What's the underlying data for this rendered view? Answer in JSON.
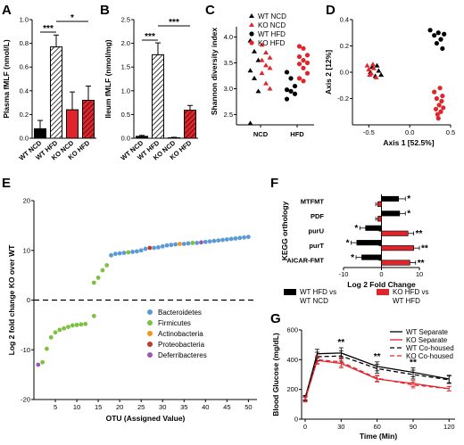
{
  "colors": {
    "black": "#000000",
    "red": "#e0242b",
    "blue": "#5b9bd5",
    "green": "#7dc142",
    "orange": "#f7941d",
    "purple": "#9b59b6",
    "darkred": "#c0392b"
  },
  "panels": {
    "A": {
      "label": "A"
    },
    "B": {
      "label": "B"
    },
    "C": {
      "label": "C"
    },
    "D": {
      "label": "D"
    },
    "E": {
      "label": "E"
    },
    "F": {
      "label": "F"
    },
    "G": {
      "label": "G"
    }
  },
  "chart_data": [
    {
      "id": "A",
      "type": "bar",
      "ylabel": "Plasma fMLF (nmol/L)",
      "ylim": [
        0,
        1.0
      ],
      "yticks": [
        "0.0",
        "0.2",
        "0.4",
        "0.6",
        "0.8",
        "1.0"
      ],
      "categories": [
        "WT NCD",
        "WT HFD",
        "KO NCD",
        "KO HFD"
      ],
      "values": [
        0.08,
        0.77,
        0.24,
        0.32
      ],
      "errors": [
        0.07,
        0.1,
        0.15,
        0.12
      ],
      "significance": [
        "***",
        "*"
      ]
    },
    {
      "id": "B",
      "type": "bar",
      "ylabel": "Ileum fMLF (nmol/mg)",
      "ylim": [
        0,
        2.5
      ],
      "yticks": [
        "0.0",
        "0.5",
        "1.0",
        "1.5",
        "2.0",
        "2.5"
      ],
      "categories": [
        "WT NCD",
        "WT HFD",
        "KO NCD",
        "KO HFD"
      ],
      "values": [
        0.04,
        1.76,
        0.01,
        0.59
      ],
      "errors": [
        0.02,
        0.25,
        0.01,
        0.1
      ],
      "significance": [
        "***",
        "***"
      ]
    },
    {
      "id": "C",
      "type": "scatter",
      "ylabel": "Shannon diversity index",
      "ylim": [
        2.3,
        4.2
      ],
      "yticks": [
        "2.5",
        "3.0",
        "3.5",
        "4.0"
      ],
      "categories": [
        "NCD",
        "HFD"
      ],
      "legend": [
        "WT NCD",
        "KO NCD",
        "WT HFD",
        "KO HFD"
      ],
      "series": [
        {
          "name": "WT NCD",
          "group": "NCD",
          "values": [
            3.93,
            3.72,
            3.55,
            3.35,
            3.2,
            2.95,
            2.33
          ]
        },
        {
          "name": "KO NCD",
          "group": "NCD",
          "values": [
            3.85,
            3.7,
            3.6,
            3.55,
            3.45,
            3.4,
            3.3,
            3.1,
            3.0
          ]
        },
        {
          "name": "WT HFD",
          "group": "HFD",
          "values": [
            3.32,
            3.2,
            3.05,
            2.98,
            2.95,
            2.9,
            2.8
          ]
        },
        {
          "name": "KO HFD",
          "group": "HFD",
          "values": [
            3.82,
            3.78,
            3.65,
            3.62,
            3.55,
            3.5,
            3.48,
            3.4,
            3.3,
            3.2,
            3.15
          ]
        }
      ]
    },
    {
      "id": "D",
      "type": "scatter",
      "xlabel": "Axis 1 [52.5%]",
      "ylabel": "Axis 2 [12%]",
      "xlim": [
        -0.7,
        0.5
      ],
      "ylim": [
        -0.4,
        0.4
      ],
      "xticks": [
        "-0.5",
        "0.0",
        "0.5"
      ],
      "yticks": [
        "-0.2",
        "0.0",
        "0.2",
        "0.4"
      ],
      "series": [
        {
          "name": "WT NCD",
          "points": [
            [
              -0.48,
              0.0
            ],
            [
              -0.42,
              -0.03
            ],
            [
              -0.4,
              0.05
            ],
            [
              -0.35,
              -0.02
            ],
            [
              -0.46,
              0.04
            ],
            [
              -0.38,
              0.01
            ]
          ]
        },
        {
          "name": "KO NCD",
          "points": [
            [
              -0.52,
              0.05
            ],
            [
              -0.5,
              0.02
            ],
            [
              -0.47,
              -0.01
            ],
            [
              -0.44,
              0.03
            ],
            [
              -0.41,
              -0.04
            ],
            [
              -0.45,
              0.06
            ],
            [
              -0.49,
              -0.02
            ]
          ]
        },
        {
          "name": "WT HFD",
          "points": [
            [
              0.25,
              0.32
            ],
            [
              0.3,
              0.28
            ],
            [
              0.35,
              0.3
            ],
            [
              0.38,
              0.25
            ],
            [
              0.4,
              0.18
            ],
            [
              0.33,
              0.22
            ],
            [
              0.42,
              0.29
            ]
          ]
        },
        {
          "name": "KO HFD",
          "points": [
            [
              0.3,
              -0.15
            ],
            [
              0.33,
              -0.2
            ],
            [
              0.36,
              -0.25
            ],
            [
              0.38,
              -0.3
            ],
            [
              0.4,
              -0.18
            ],
            [
              0.35,
              -0.35
            ],
            [
              0.32,
              -0.28
            ],
            [
              0.39,
              -0.22
            ],
            [
              0.37,
              -0.12
            ],
            [
              0.34,
              -0.32
            ],
            [
              0.41,
              -0.27
            ]
          ]
        }
      ]
    },
    {
      "id": "E",
      "type": "scatter",
      "xlabel": "OTU (Assigned Value)",
      "ylabel": "Log 2 fold change KO over WT",
      "xlim": [
        0,
        52
      ],
      "ylim": [
        -20,
        20
      ],
      "xticks": [
        "5",
        "10",
        "15",
        "20",
        "25",
        "30",
        "35",
        "40",
        "45",
        "50"
      ],
      "yticks": [
        "-20",
        "-10",
        "0",
        "10",
        "20"
      ],
      "legend": [
        "Bacteroidetes",
        "Firmicutes",
        "Actinobacteria",
        "Proteobacteria",
        "Deferribacteres"
      ],
      "values": [
        [
          1,
          -13.0,
          "Deferribacteres"
        ],
        [
          2,
          -12.5,
          "Firmicutes"
        ],
        [
          3,
          -9.8,
          "Firmicutes"
        ],
        [
          4,
          -7.5,
          "Firmicutes"
        ],
        [
          5,
          -6.5,
          "Firmicutes"
        ],
        [
          6,
          -6.0,
          "Firmicutes"
        ],
        [
          7,
          -5.7,
          "Firmicutes"
        ],
        [
          8,
          -5.4,
          "Firmicutes"
        ],
        [
          9,
          -5.1,
          "Firmicutes"
        ],
        [
          10,
          -5.0,
          "Firmicutes"
        ],
        [
          11,
          -4.9,
          "Firmicutes"
        ],
        [
          12,
          -4.8,
          "Firmicutes"
        ],
        [
          14,
          -3.2,
          "Firmicutes"
        ],
        [
          14,
          3.5,
          "Firmicutes"
        ],
        [
          15,
          4.5,
          "Firmicutes"
        ],
        [
          16,
          6.0,
          "Firmicutes"
        ],
        [
          17,
          7.0,
          "Firmicutes"
        ],
        [
          18,
          9.0,
          "Bacteroidetes"
        ],
        [
          19,
          9.3,
          "Bacteroidetes"
        ],
        [
          20,
          9.4,
          "Bacteroidetes"
        ],
        [
          21,
          9.5,
          "Bacteroidetes"
        ],
        [
          22,
          9.6,
          "Firmicutes"
        ],
        [
          23,
          9.7,
          "Bacteroidetes"
        ],
        [
          24,
          9.8,
          "Bacteroidetes"
        ],
        [
          25,
          10.0,
          "Bacteroidetes"
        ],
        [
          26,
          10.3,
          "Bacteroidetes"
        ],
        [
          27,
          10.5,
          "Proteobacteria"
        ],
        [
          28,
          10.5,
          "Bacteroidetes"
        ],
        [
          29,
          10.6,
          "Bacteroidetes"
        ],
        [
          30,
          10.8,
          "Bacteroidetes"
        ],
        [
          31,
          11.0,
          "Bacteroidetes"
        ],
        [
          32,
          11.1,
          "Bacteroidetes"
        ],
        [
          33,
          11.2,
          "Bacteroidetes"
        ],
        [
          34,
          11.3,
          "Actinobacteria"
        ],
        [
          35,
          11.3,
          "Bacteroidetes"
        ],
        [
          36,
          11.4,
          "Bacteroidetes"
        ],
        [
          37,
          11.5,
          "Firmicutes"
        ],
        [
          38,
          11.5,
          "Bacteroidetes"
        ],
        [
          39,
          11.6,
          "Deferribacteres"
        ],
        [
          40,
          11.7,
          "Bacteroidetes"
        ],
        [
          41,
          11.8,
          "Bacteroidetes"
        ],
        [
          42,
          11.9,
          "Bacteroidetes"
        ],
        [
          43,
          12.0,
          "Bacteroidetes"
        ],
        [
          44,
          12.1,
          "Bacteroidetes"
        ],
        [
          45,
          12.2,
          "Bacteroidetes"
        ],
        [
          46,
          12.3,
          "Bacteroidetes"
        ],
        [
          47,
          12.4,
          "Bacteroidetes"
        ],
        [
          48,
          12.5,
          "Bacteroidetes"
        ],
        [
          49,
          12.6,
          "Bacteroidetes"
        ],
        [
          50,
          12.7,
          "Bacteroidetes"
        ]
      ]
    },
    {
      "id": "F",
      "type": "bar",
      "orientation": "horizontal",
      "xlabel": "Log 2 Fold Change",
      "ylabel": "KEGG orthology",
      "xlim": [
        -10,
        10
      ],
      "xticks": [
        "-10",
        "0",
        "10"
      ],
      "categories": [
        "MTFMT",
        "PDF",
        "purU",
        "purT",
        "AICAR-FMT"
      ],
      "series": [
        {
          "name": "WT HFD vs WT NCD",
          "values": [
            4.5,
            4.8,
            -4.2,
            -6.5,
            -5.2
          ],
          "errors": [
            1.8,
            1.5,
            1.5,
            1.5,
            1.5
          ],
          "stars": [
            "*",
            "*",
            "*",
            "*",
            "*"
          ]
        },
        {
          "name": "KO HFD vs WT HFD",
          "values": [
            -1.0,
            -1.0,
            7.0,
            8.5,
            7.5
          ],
          "errors": [
            0.5,
            0.5,
            1.5,
            1.5,
            1.5
          ],
          "stars": [
            "",
            "",
            "**",
            "**",
            "**"
          ]
        }
      ]
    },
    {
      "id": "G",
      "type": "line",
      "xlabel": "Time (Min)",
      "ylabel": "Blood Glucose (mg/dL)",
      "xlim": [
        0,
        125
      ],
      "ylim": [
        0,
        600
      ],
      "xticks": [
        "0",
        "30",
        "60",
        "90",
        "120"
      ],
      "yticks": [
        "0",
        "200",
        "400",
        "600"
      ],
      "x": [
        0,
        10,
        30,
        60,
        90,
        120
      ],
      "series": [
        {
          "name": "WT Separate",
          "values": [
            140,
            440,
            445,
            355,
            315,
            270
          ],
          "errors": [
            15,
            30,
            35,
            30,
            30,
            25
          ]
        },
        {
          "name": "KO Separate",
          "values": [
            130,
            395,
            375,
            270,
            240,
            205
          ],
          "errors": [
            15,
            25,
            30,
            20,
            20,
            15
          ]
        },
        {
          "name": "WT Co-housed",
          "values": [
            145,
            420,
            425,
            340,
            300,
            265
          ],
          "errors": [
            15,
            30,
            35,
            30,
            30,
            25
          ]
        },
        {
          "name": "KO Co-housed",
          "values": [
            135,
            400,
            385,
            275,
            230,
            205
          ],
          "errors": [
            15,
            25,
            30,
            20,
            20,
            15
          ]
        }
      ],
      "annotations": [
        {
          "x": 30,
          "text": "**"
        },
        {
          "x": 60,
          "text": "**"
        },
        {
          "x": 90,
          "text": "**"
        }
      ]
    }
  ]
}
